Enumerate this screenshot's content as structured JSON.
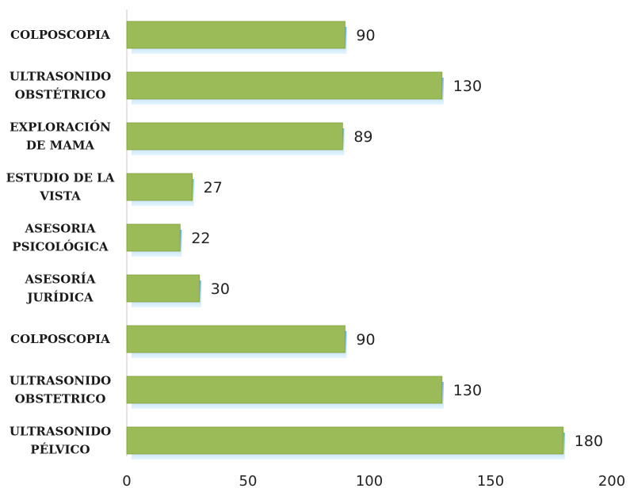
{
  "chart_data": {
    "type": "bar",
    "orientation": "horizontal",
    "categories": [
      [
        "COLPOSCOPIA"
      ],
      [
        "ULTRASONIDO",
        "OBSTÉTRICO"
      ],
      [
        "EXPLORACIÓN",
        "DE MAMA"
      ],
      [
        "ESTUDIO DE LA",
        "VISTA"
      ],
      [
        "ASESORIA",
        "PSICOLÓGICA"
      ],
      [
        "ASESORÍA",
        "JURÍDICA"
      ],
      [
        "COLPOSCOPIA"
      ],
      [
        "ULTRASONIDO",
        "OBSTETRICO"
      ],
      [
        "ULTRASONIDO",
        "PÉLVICO"
      ]
    ],
    "values": [
      90,
      130,
      89,
      27,
      22,
      30,
      90,
      130,
      180
    ],
    "xlim": [
      0,
      200
    ],
    "xticks": [
      0,
      50,
      100,
      150,
      200
    ],
    "title": "",
    "xlabel": "",
    "ylabel": "",
    "grid": false,
    "legend": "none",
    "colors": {
      "bar": "#9bbb59",
      "bar_edge": "#7f9e3f",
      "shadow": "#4aa6e0",
      "axis": "#c8c8c8"
    }
  }
}
